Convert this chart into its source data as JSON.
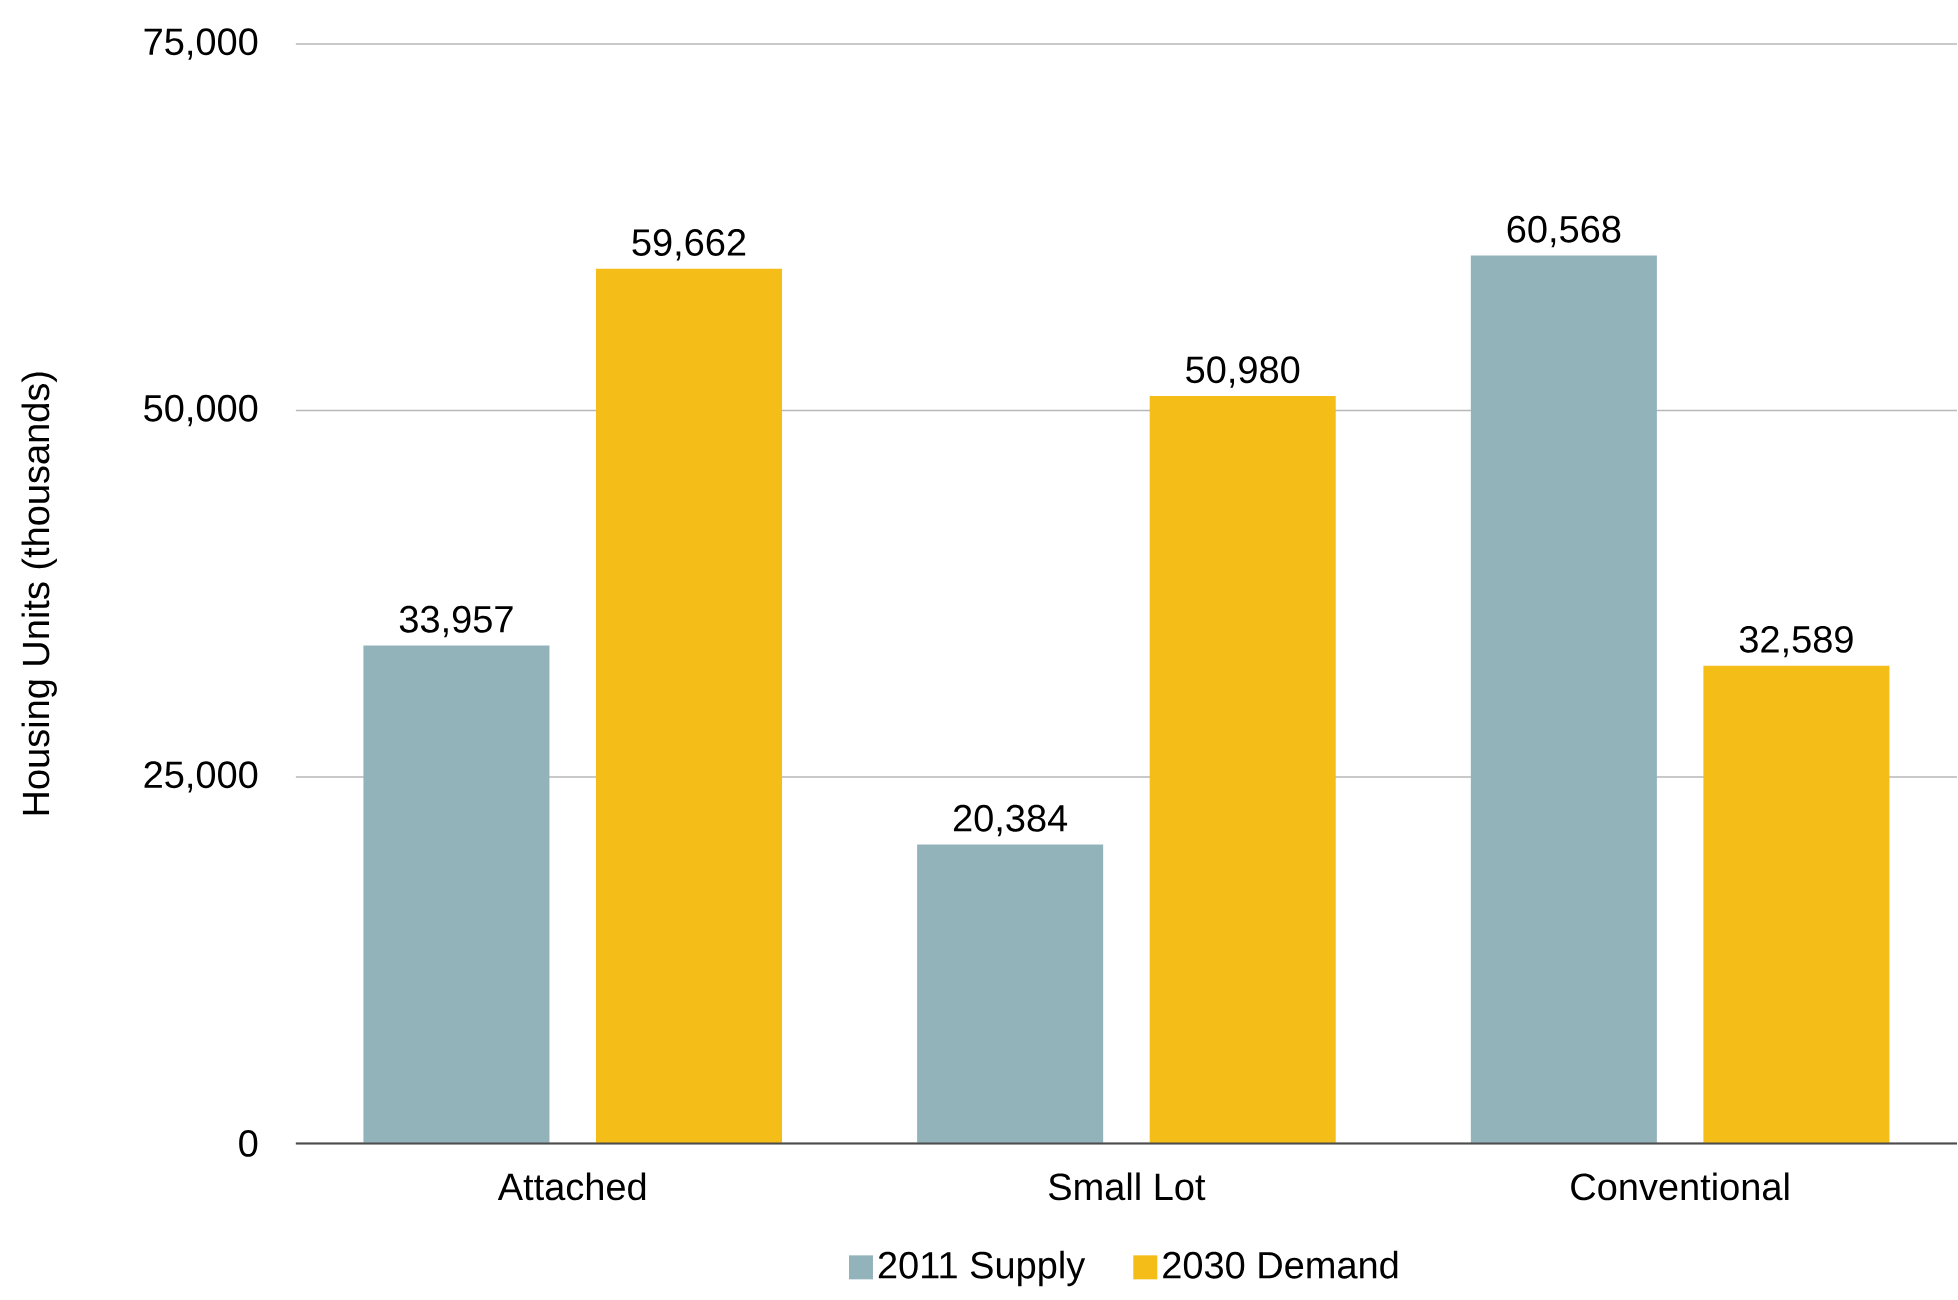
{
  "chart_data": {
    "type": "bar",
    "ylabel": "Housing Units (thousands)",
    "categories": [
      "Attached",
      "Small Lot",
      "Conventional"
    ],
    "series": [
      {
        "name": "2011 Supply",
        "color": "#93b3bb",
        "values": [
          33957,
          20384,
          60568
        ],
        "value_labels": [
          "33,957",
          "20,384",
          "60,568"
        ]
      },
      {
        "name": "2030 Demand",
        "color": "#f5bd17",
        "values": [
          59662,
          50980,
          32589
        ],
        "value_labels": [
          "59,662",
          "50,980",
          "32,589"
        ]
      }
    ],
    "ylim": [
      0,
      75000
    ],
    "yticks": [
      {
        "value": 0,
        "label": "0"
      },
      {
        "value": 25000,
        "label": "25,000"
      },
      {
        "value": 50000,
        "label": "50,000"
      },
      {
        "value": 75000,
        "label": "75,000"
      }
    ],
    "grid": "y",
    "legend": "bottom"
  }
}
